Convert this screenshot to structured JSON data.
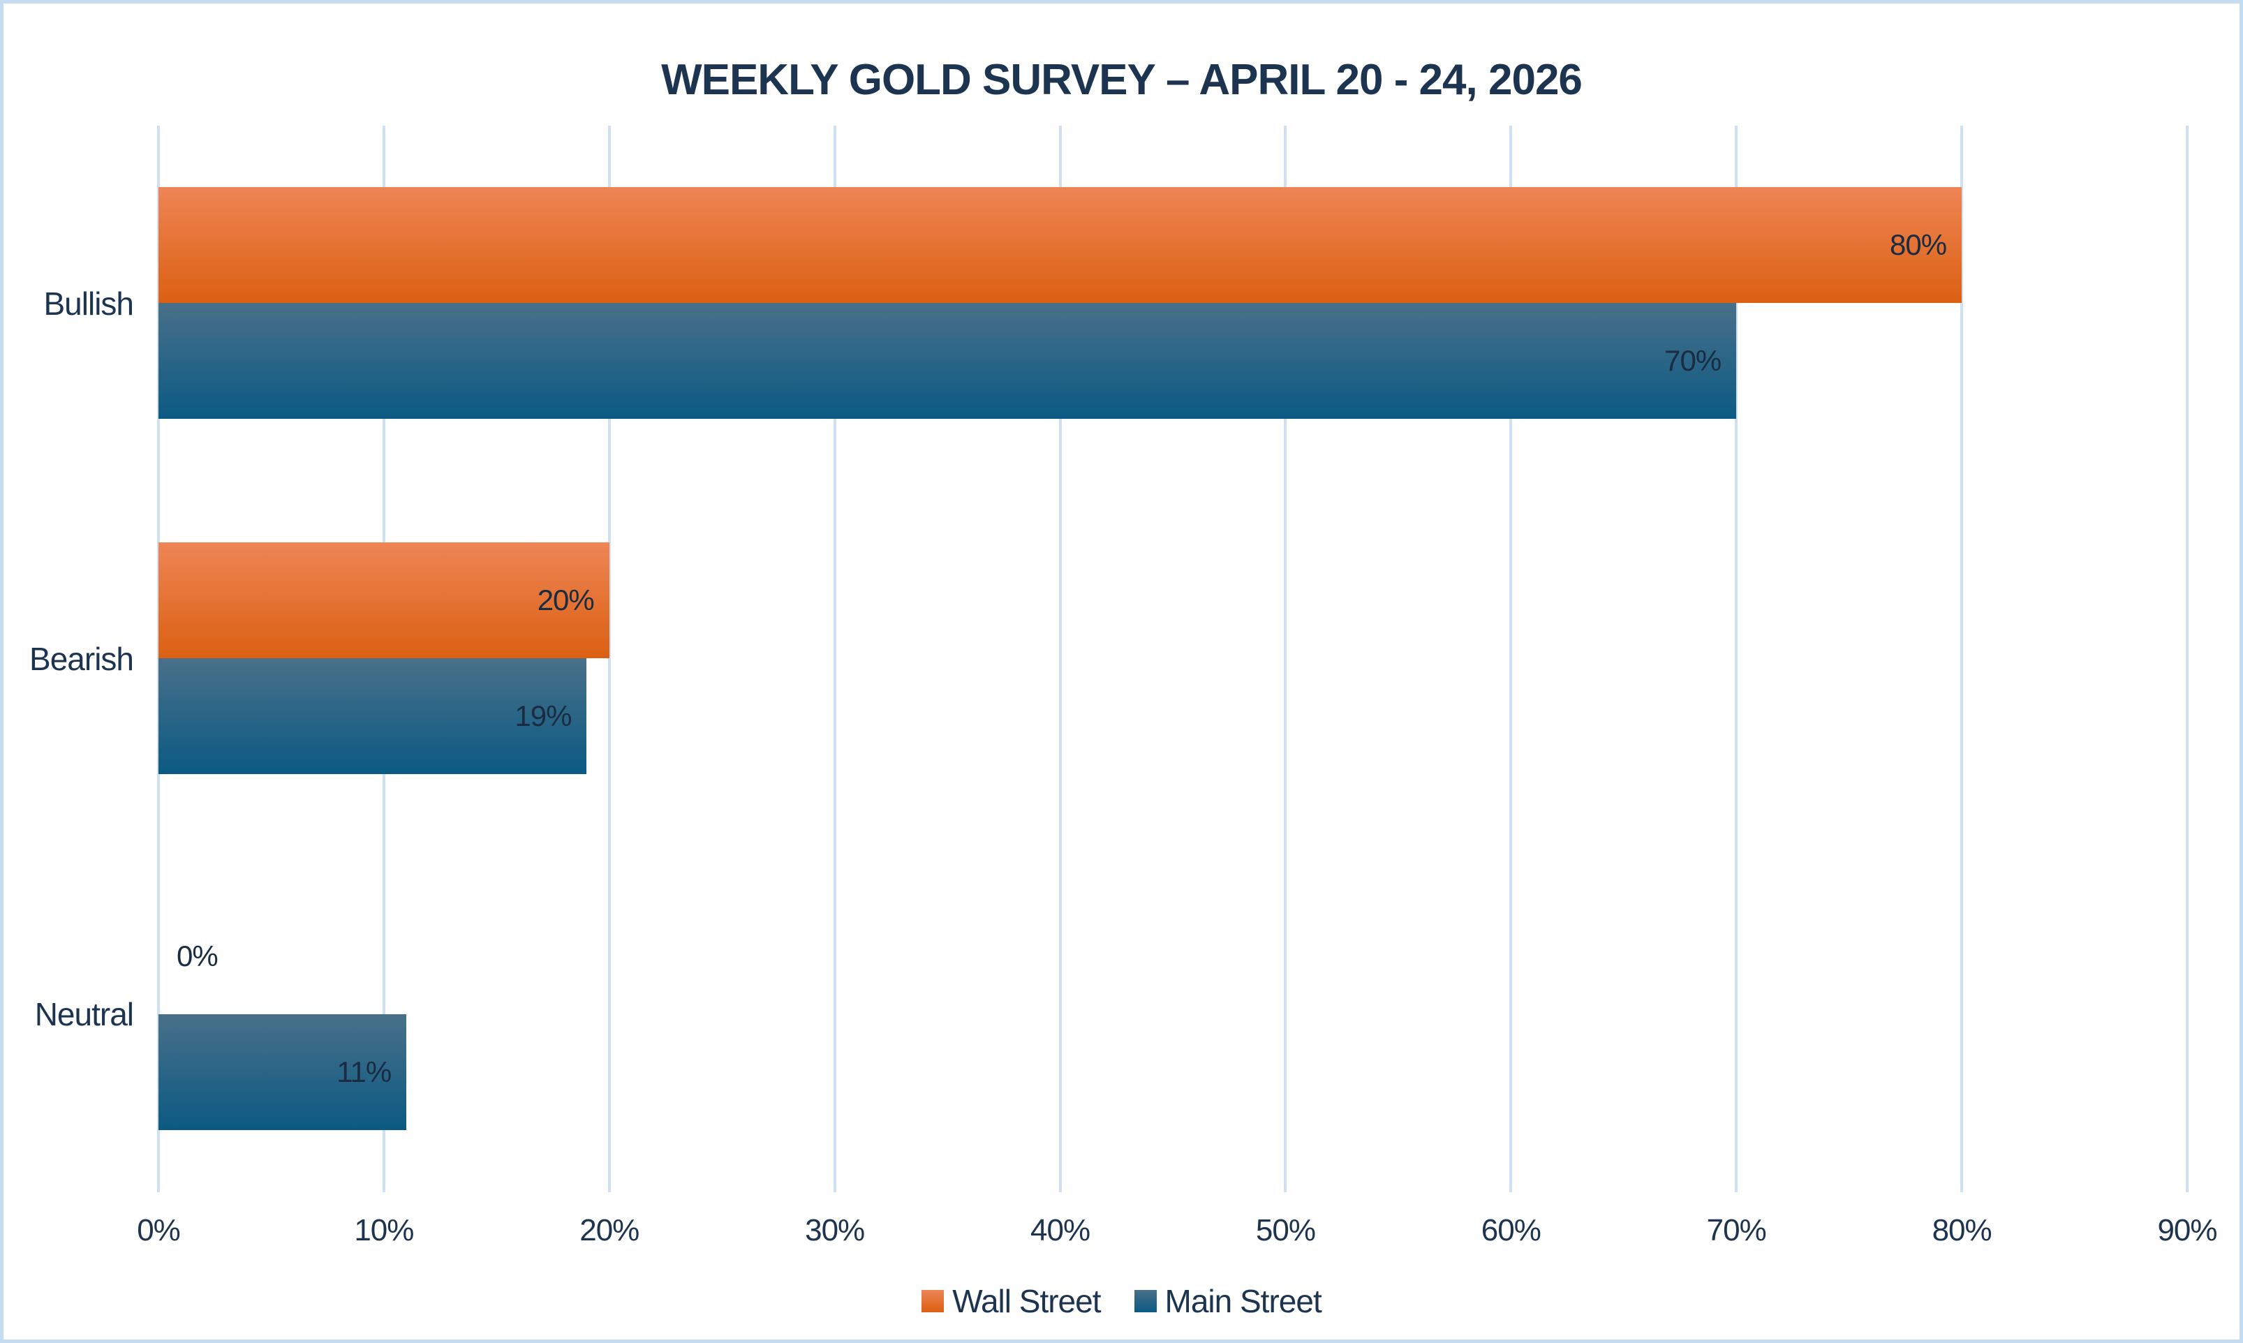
{
  "chart_data": {
    "type": "bar",
    "orientation": "horizontal",
    "title": "WEEKLY GOLD SURVEY – APRIL 20 - 24, 2026",
    "categories": [
      "Bullish",
      "Bearish",
      "Neutral"
    ],
    "series": [
      {
        "name": "Wall Street",
        "values": [
          80,
          20,
          0
        ],
        "data_labels": [
          "80%",
          "20%",
          "0%"
        ]
      },
      {
        "name": "Main Street",
        "values": [
          70,
          19,
          11
        ],
        "data_labels": [
          "70%",
          "19%",
          "11%"
        ]
      }
    ],
    "x_axis": {
      "min": 0,
      "max": 90,
      "tick_step": 10,
      "tick_labels": [
        "0%",
        "10%",
        "20%",
        "30%",
        "40%",
        "50%",
        "60%",
        "70%",
        "80%",
        "90%"
      ]
    },
    "grid": true,
    "legend_position": "bottom"
  },
  "colors": {
    "wall_street_top": "#EE8555",
    "wall_street_bottom": "#DB6012",
    "main_street_top": "#497089",
    "main_street_bottom": "#0B5A83",
    "text_navy": "#1D3450",
    "data_label": "#1A2C42",
    "gridline": "#CFE0F2",
    "frame_border": "#C5DBF0",
    "background": "#FFFFFF"
  }
}
